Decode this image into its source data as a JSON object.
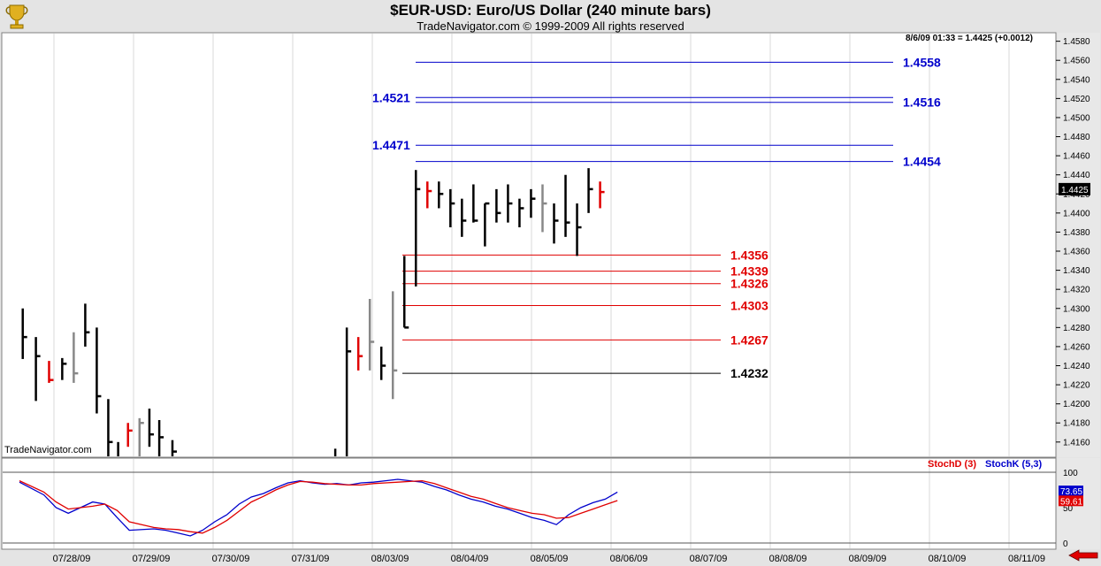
{
  "header": {
    "title": "$EUR-USD:  Euro/US Dollar  (240 minute bars)",
    "subtitle": "TradeNavigator.com © 1999-2009 All rights reserved"
  },
  "quote_line": "8/6/09 01:33 = 1.4425 (+0.0012)",
  "watermark": "TradeNavigator.com",
  "indicator_labels": {
    "stochd": "StochD (3)",
    "stochk": "StochK (5,3)"
  },
  "colors": {
    "up": "#000000",
    "down": "#e00000",
    "neutral": "#888888",
    "stochd": "#e00000",
    "stochk": "#0000cc",
    "blue_level": "#0000cc",
    "red_level": "#e00000"
  },
  "chart_data": [
    {
      "type": "ohlc",
      "x_labels": [
        "07/28/09",
        "07/29/09",
        "07/30/09",
        "07/31/09",
        "08/03/09",
        "08/04/09",
        "08/05/09",
        "08/06/09",
        "08/07/09",
        "08/08/09",
        "08/09/09",
        "08/10/09",
        "08/11/09"
      ],
      "y_ticks": [
        "1.4580",
        "1.4560",
        "1.4540",
        "1.4520",
        "1.4500",
        "1.4480",
        "1.4460",
        "1.4440",
        "1.4420",
        "1.4400",
        "1.4380",
        "1.4360",
        "1.4340",
        "1.4320",
        "1.4300",
        "1.4280",
        "1.4260",
        "1.4240",
        "1.4220",
        "1.4200",
        "1.4180",
        "1.4160"
      ],
      "ylim": [
        1.4145,
        1.4588
      ],
      "last_price": "1.4425",
      "bars": [
        [
          0.2,
          1.43,
          1.4247,
          1.427,
          "up"
        ],
        [
          1.0,
          1.427,
          1.4203,
          1.425,
          "up"
        ],
        [
          1.8,
          1.4245,
          1.4222,
          1.4225,
          "down"
        ],
        [
          2.6,
          1.4248,
          1.4225,
          1.4242,
          "up"
        ],
        [
          3.3,
          1.4275,
          1.4222,
          1.4232,
          "neutral"
        ],
        [
          4.0,
          1.4305,
          1.426,
          1.4275,
          "up"
        ],
        [
          4.7,
          1.428,
          1.419,
          1.4208,
          "up"
        ],
        [
          5.4,
          1.4205,
          1.411,
          1.416,
          "up"
        ],
        [
          6.0,
          1.416,
          1.4085,
          1.411,
          "up"
        ],
        [
          6.6,
          1.418,
          1.4155,
          1.4172,
          "down"
        ],
        [
          7.3,
          1.4185,
          1.4135,
          1.418,
          "neutral"
        ],
        [
          7.9,
          1.4195,
          1.4155,
          1.4168,
          "up"
        ],
        [
          8.5,
          1.4183,
          1.4125,
          1.4165,
          "up"
        ],
        [
          9.3,
          1.4162,
          1.408,
          1.415,
          "up"
        ],
        [
          19.2,
          1.4153,
          1.412,
          1.414,
          "up"
        ],
        [
          19.9,
          1.428,
          1.4055,
          1.4255,
          "up"
        ],
        [
          20.6,
          1.427,
          1.4235,
          1.425,
          "down"
        ],
        [
          21.3,
          1.431,
          1.4235,
          1.4265,
          "neutral"
        ],
        [
          22.0,
          1.426,
          1.4225,
          1.424,
          "up"
        ],
        [
          22.7,
          1.4318,
          1.4205,
          1.4235,
          "neutral"
        ],
        [
          23.4,
          1.4355,
          1.428,
          1.428,
          "up"
        ],
        [
          24.1,
          1.4445,
          1.4323,
          1.4425,
          "up"
        ],
        [
          24.8,
          1.4433,
          1.4405,
          1.4423,
          "down"
        ],
        [
          25.5,
          1.4433,
          1.4405,
          1.442,
          "up"
        ],
        [
          26.2,
          1.4425,
          1.4385,
          1.441,
          "up"
        ],
        [
          26.9,
          1.4415,
          1.4375,
          1.4392,
          "up"
        ],
        [
          27.6,
          1.443,
          1.439,
          1.4392,
          "up"
        ],
        [
          28.3,
          1.441,
          1.4365,
          1.441,
          "up"
        ],
        [
          29.0,
          1.4425,
          1.439,
          1.44,
          "up"
        ],
        [
          29.7,
          1.443,
          1.439,
          1.441,
          "up"
        ],
        [
          30.4,
          1.4415,
          1.4385,
          1.4405,
          "up"
        ],
        [
          31.1,
          1.4425,
          1.4395,
          1.4415,
          "up"
        ],
        [
          31.8,
          1.443,
          1.438,
          1.441,
          "neutral"
        ],
        [
          32.5,
          1.441,
          1.4368,
          1.4392,
          "up"
        ],
        [
          33.2,
          1.444,
          1.4375,
          1.439,
          "up"
        ],
        [
          33.9,
          1.441,
          1.4355,
          1.4385,
          "up"
        ],
        [
          34.6,
          1.4447,
          1.44,
          1.4425,
          "up"
        ],
        [
          35.3,
          1.4433,
          1.4405,
          1.4422,
          "down"
        ]
      ],
      "levels": [
        {
          "label": "1.4558",
          "value": 1.4558,
          "color": "blue",
          "side": "right"
        },
        {
          "label": "1.4521",
          "value": 1.4521,
          "color": "blue",
          "side": "left"
        },
        {
          "label": "1.4516",
          "value": 1.4516,
          "color": "blue",
          "side": "right"
        },
        {
          "label": "1.4471",
          "value": 1.4471,
          "color": "blue",
          "side": "left"
        },
        {
          "label": "1.4454",
          "value": 1.4454,
          "color": "blue",
          "side": "right"
        },
        {
          "label": "1.4356",
          "value": 1.4356,
          "color": "red",
          "side": "right"
        },
        {
          "label": "1.4339",
          "value": 1.4339,
          "color": "red",
          "side": "right"
        },
        {
          "label": "1.4326",
          "value": 1.4326,
          "color": "red",
          "side": "right"
        },
        {
          "label": "1.4303",
          "value": 1.4303,
          "color": "red",
          "side": "right"
        },
        {
          "label": "1.4267",
          "value": 1.4267,
          "color": "red",
          "side": "right"
        },
        {
          "label": "1.4232",
          "value": 1.4232,
          "color": "black",
          "side": "right"
        }
      ]
    },
    {
      "type": "line",
      "y_ticks": [
        "100",
        "50",
        "0"
      ],
      "ylim": [
        0,
        100
      ],
      "last_values": {
        "stochk": "73.65",
        "stochd": "59.61"
      },
      "series": [
        {
          "name": "StochK (5,3)",
          "color": "blue",
          "points": [
            [
              0,
              86
            ],
            [
              2,
              68
            ],
            [
              3,
              50
            ],
            [
              4,
              42
            ],
            [
              6,
              58
            ],
            [
              7,
              55
            ],
            [
              8,
              36
            ],
            [
              9,
              18
            ],
            [
              11,
              20
            ],
            [
              12,
              18
            ],
            [
              13,
              14
            ],
            [
              14,
              10
            ],
            [
              15,
              18
            ],
            [
              16,
              30
            ],
            [
              17,
              40
            ],
            [
              18,
              55
            ],
            [
              19,
              65
            ],
            [
              20,
              70
            ],
            [
              21,
              78
            ],
            [
              22,
              85
            ],
            [
              23,
              88
            ],
            [
              24,
              85
            ],
            [
              25,
              83
            ],
            [
              26,
              84
            ],
            [
              27,
              82
            ],
            [
              28,
              85
            ],
            [
              29,
              86
            ],
            [
              30,
              88
            ],
            [
              31,
              90
            ],
            [
              32,
              88
            ],
            [
              33,
              86
            ],
            [
              34,
              80
            ],
            [
              35,
              75
            ],
            [
              36,
              68
            ],
            [
              37,
              62
            ],
            [
              38,
              58
            ],
            [
              39,
              52
            ],
            [
              40,
              48
            ],
            [
              41,
              42
            ],
            [
              42,
              36
            ],
            [
              43,
              32
            ],
            [
              44,
              26
            ],
            [
              45,
              40
            ],
            [
              46,
              50
            ],
            [
              47,
              57
            ],
            [
              48,
              62
            ],
            [
              49,
              72
            ]
          ]
        },
        {
          "name": "StochD (3)",
          "color": "red",
          "points": [
            [
              0,
              88
            ],
            [
              2,
              72
            ],
            [
              3,
              58
            ],
            [
              4,
              48
            ],
            [
              6,
              52
            ],
            [
              7,
              55
            ],
            [
              8,
              46
            ],
            [
              9,
              30
            ],
            [
              11,
              22
            ],
            [
              12,
              20
            ],
            [
              13,
              19
            ],
            [
              14,
              16
            ],
            [
              15,
              14
            ],
            [
              16,
              22
            ],
            [
              17,
              32
            ],
            [
              18,
              45
            ],
            [
              19,
              58
            ],
            [
              20,
              66
            ],
            [
              21,
              75
            ],
            [
              22,
              82
            ],
            [
              23,
              87
            ],
            [
              24,
              86
            ],
            [
              25,
              84
            ],
            [
              26,
              83
            ],
            [
              27,
              82
            ],
            [
              28,
              82
            ],
            [
              29,
              84
            ],
            [
              30,
              85
            ],
            [
              31,
              86
            ],
            [
              32,
              87
            ],
            [
              33,
              88
            ],
            [
              34,
              84
            ],
            [
              35,
              78
            ],
            [
              36,
              72
            ],
            [
              37,
              66
            ],
            [
              38,
              62
            ],
            [
              39,
              56
            ],
            [
              40,
              50
            ],
            [
              41,
              46
            ],
            [
              42,
              42
            ],
            [
              43,
              40
            ],
            [
              44,
              35
            ],
            [
              45,
              36
            ],
            [
              46,
              42
            ],
            [
              47,
              48
            ],
            [
              48,
              54
            ],
            [
              49,
              60
            ]
          ]
        }
      ]
    }
  ]
}
